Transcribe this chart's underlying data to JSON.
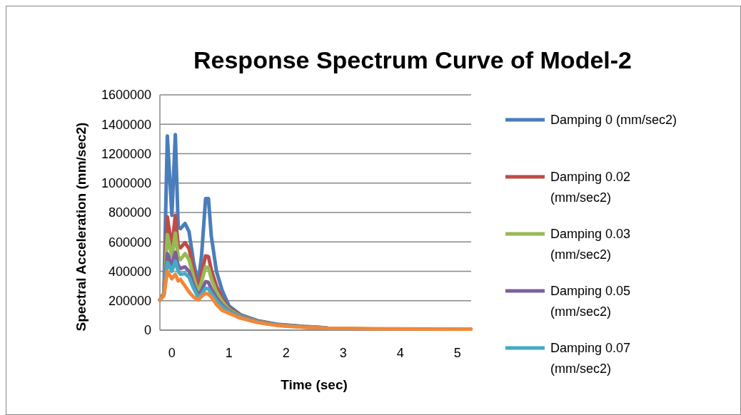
{
  "chart_data": {
    "type": "line",
    "title": "Response Spectrum Curve of Model-2",
    "xlabel": "Time (sec)",
    "ylabel": "Spectral Acceleration (mm/sec2)",
    "x": [
      -0.21,
      -0.14,
      -0.08,
      0,
      0.06,
      0.11,
      0.15,
      0.23,
      0.3,
      0.38,
      0.46,
      0.52,
      0.59,
      0.64,
      0.69,
      0.78,
      0.88,
      1.0,
      1.2,
      1.5,
      1.84,
      2.3,
      2.71,
      3.5,
      4.09,
      5.24
    ],
    "series": [
      {
        "name": "Damping 0 (mm/sec2)",
        "color": "#4a7ebb",
        "values": [
          205000,
          250000,
          1320000,
          780000,
          1330000,
          700000,
          690000,
          725000,
          670000,
          460000,
          315000,
          510000,
          895000,
          895000,
          640000,
          400000,
          270000,
          165000,
          105000,
          65000,
          40000,
          25000,
          16000,
          null,
          null,
          null
        ]
      },
      {
        "name": "Damping 0.02 (mm/sec2)",
        "color": "#be4b48",
        "values": [
          205000,
          250000,
          770000,
          560000,
          780000,
          575000,
          560000,
          595000,
          555000,
          410000,
          280000,
          390000,
          505000,
          500000,
          410000,
          300000,
          215000,
          150000,
          100000,
          62000,
          38000,
          24000,
          16000,
          null,
          null,
          null
        ]
      },
      {
        "name": "Damping 0.03 (mm/sec2)",
        "color": "#98b954",
        "values": [
          205000,
          250000,
          650000,
          500000,
          660000,
          500000,
          480000,
          520000,
          480000,
          360000,
          255000,
          330000,
          430000,
          425000,
          350000,
          260000,
          195000,
          140000,
          95000,
          60000,
          37000,
          23000,
          15000,
          null,
          null,
          null
        ]
      },
      {
        "name": "Damping 0.05 (mm/sec2)",
        "color": "#7d60a0",
        "values": [
          205000,
          245000,
          520000,
          440000,
          530000,
          440000,
          420000,
          430000,
          400000,
          310000,
          235000,
          270000,
          330000,
          325000,
          280000,
          220000,
          170000,
          130000,
          90000,
          57000,
          35000,
          22000,
          15000,
          null,
          null,
          null
        ]
      },
      {
        "name": "Damping 0.07 (mm/sec2)",
        "color": "#46aac5",
        "values": [
          205000,
          240000,
          460000,
          400000,
          470000,
          400000,
          380000,
          385000,
          360000,
          285000,
          222000,
          245000,
          285000,
          280000,
          250000,
          200000,
          160000,
          125000,
          88000,
          55000,
          34000,
          21000,
          14000,
          null,
          null,
          null
        ]
      },
      {
        "color": "#f0883a",
        "values": [
          205000,
          235000,
          400000,
          350000,
          380000,
          335000,
          345000,
          300000,
          260000,
          225000,
          205000,
          230000,
          250000,
          245000,
          225000,
          175000,
          135000,
          115000,
          82000,
          52000,
          32000,
          20000,
          13000,
          10000,
          9000,
          7000
        ]
      }
    ],
    "xlim": [
      -0.21,
      5.24
    ],
    "xticks": [
      0,
      1,
      2,
      3,
      4,
      5
    ],
    "ylim": [
      0,
      1600000
    ],
    "yticks": [
      0,
      200000,
      400000,
      600000,
      800000,
      1000000,
      1200000,
      1400000,
      1600000
    ],
    "grid": "y",
    "legend": "right",
    "marker": "none",
    "line_style": "solid"
  }
}
